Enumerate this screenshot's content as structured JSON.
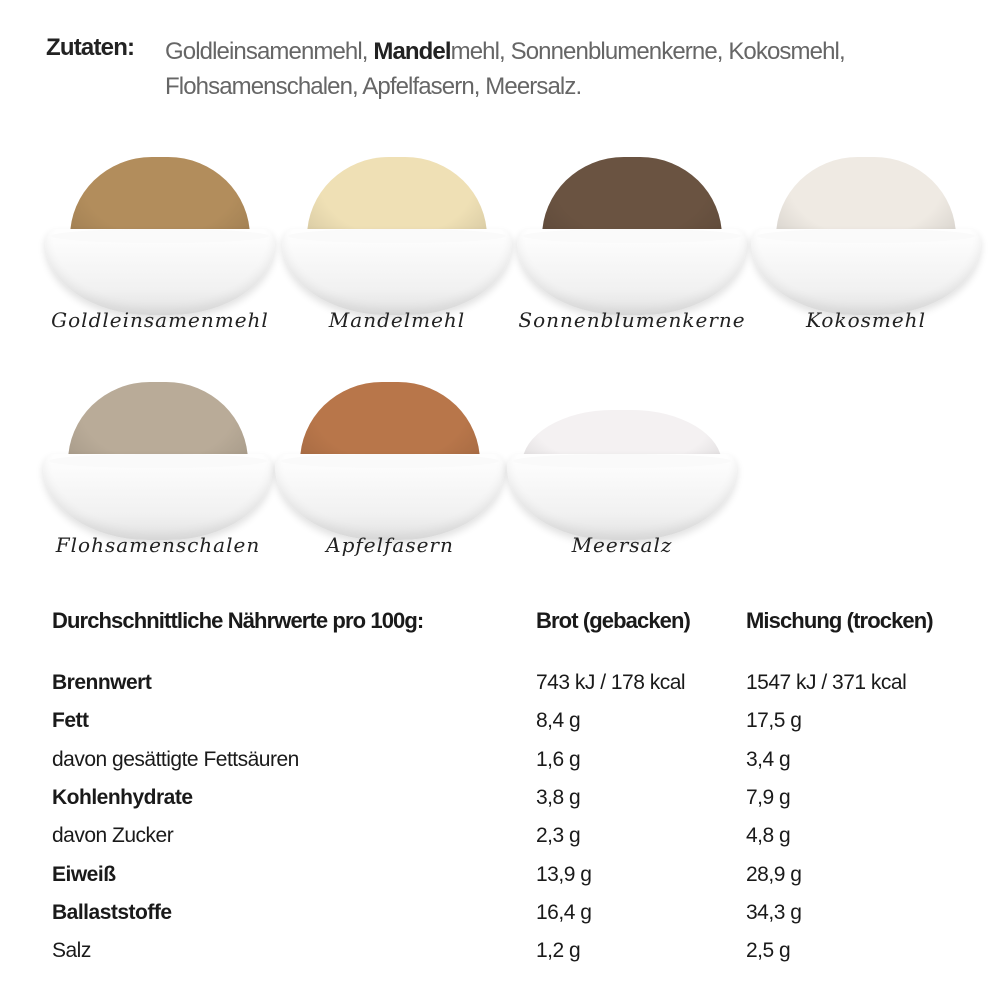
{
  "ingredients_line": {
    "label": "Zutaten:",
    "part1": "Goldleinsamenmehl, ",
    "bold": "Mandel",
    "part2": "mehl, Sonnenblumenkerne, Kokosmehl,",
    "line2": "Flohsamenschalen, Apfelfasern, Meersalz."
  },
  "bowls": [
    {
      "label": "Goldleinsamenmehl",
      "color": "#b28d5c"
    },
    {
      "label": "Mandelmehl",
      "color": "#efe0b5"
    },
    {
      "label": "Sonnenblumenkerne",
      "color": "#6a5341"
    },
    {
      "label": "Kokosmehl",
      "color": "#efeae3"
    },
    {
      "label": "Flohsamenschalen",
      "color": "#b9ab98"
    },
    {
      "label": "Apfelfasern",
      "color": "#b8764a"
    },
    {
      "label": "Meersalz",
      "color": "#f4f1f2"
    }
  ],
  "nutrition": {
    "header": "Durchschnittliche Nährwerte pro 100g:",
    "col1": "Brot (gebacken)",
    "col2": "Mischung (trocken)",
    "rows": [
      {
        "name": "Brennwert",
        "bold": true,
        "brot": "743 kJ / 178 kcal",
        "mischung": "1547 kJ / 371 kcal"
      },
      {
        "name": "Fett",
        "bold": true,
        "brot": "8,4 g",
        "mischung": "17,5 g"
      },
      {
        "name": "davon gesättigte Fettsäuren",
        "bold": false,
        "brot": "1,6 g",
        "mischung": "3,4 g"
      },
      {
        "name": "Kohlenhydrate",
        "bold": true,
        "brot": "3,8 g",
        "mischung": "7,9 g"
      },
      {
        "name": "davon Zucker",
        "bold": false,
        "brot": "2,3 g",
        "mischung": "4,8 g"
      },
      {
        "name": "Eiweiß",
        "bold": true,
        "brot": "13,9 g",
        "mischung": "28,9 g"
      },
      {
        "name": "Ballaststoffe",
        "bold": true,
        "brot": "16,4 g",
        "mischung": "34,3 g"
      },
      {
        "name": "Salz",
        "bold": false,
        "brot": "1,2 g",
        "mischung": "2,5 g"
      }
    ]
  }
}
